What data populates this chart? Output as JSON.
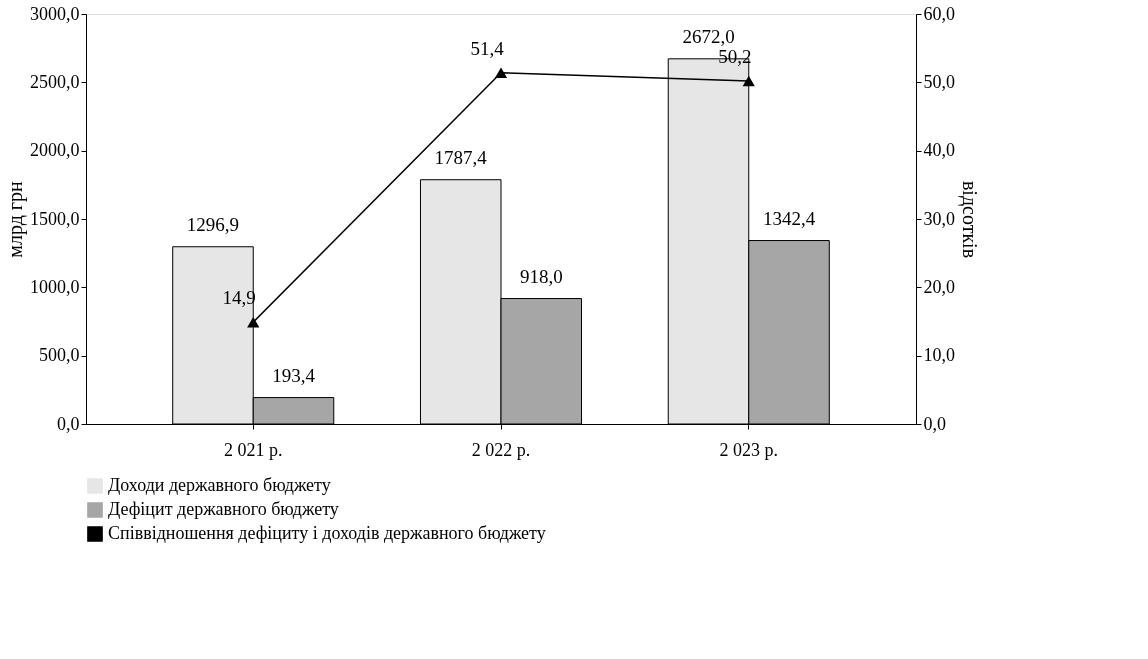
{
  "chart_data": {
    "type": "bar",
    "categories": [
      "2 021 р.",
      "2 022 р.",
      "2 023 р."
    ],
    "ylabel": "млрд грн",
    "y2label": "відсотків",
    "ylim": [
      0,
      3000
    ],
    "yticks": [
      {
        "value": 0,
        "label": "0,0"
      },
      {
        "value": 500,
        "label": "500,0"
      },
      {
        "value": 1000,
        "label": "1000,0"
      },
      {
        "value": 1500,
        "label": "1500,0"
      },
      {
        "value": 2000,
        "label": "2000,0"
      },
      {
        "value": 2500,
        "label": "2500,0"
      },
      {
        "value": 3000,
        "label": "3000,0"
      }
    ],
    "y2lim": [
      0,
      60
    ],
    "y2ticks": [
      {
        "value": 0,
        "label": "0,0"
      },
      {
        "value": 10,
        "label": "10,0"
      },
      {
        "value": 20,
        "label": "20,0"
      },
      {
        "value": 30,
        "label": "30,0"
      },
      {
        "value": 40,
        "label": "40,0"
      },
      {
        "value": 50,
        "label": "50,0"
      },
      {
        "value": 60,
        "label": "60,0"
      }
    ],
    "grid": false,
    "legend": "bottom",
    "series": [
      {
        "name": "Доходи державного бюджету",
        "type": "bar",
        "color": "#e6e6e6",
        "values": [
          1296.9,
          1787.4,
          2672.0
        ],
        "value_labels": [
          "1296,9",
          "1787,4",
          "2672,0"
        ]
      },
      {
        "name": "Дефіцит державного бюджету",
        "type": "bar",
        "color": "#a6a6a6",
        "values": [
          193.4,
          918.0,
          1342.4
        ],
        "value_labels": [
          "193,4",
          "918,0",
          "1342,4"
        ]
      },
      {
        "name": "Співвідношення дефіциту і доходів державного бюджету",
        "type": "line",
        "axis": "y2",
        "color": "#000000",
        "marker": "triangle",
        "line_style": "solid",
        "values": [
          14.9,
          51.4,
          50.2
        ],
        "value_labels": [
          "14,9",
          "51,4",
          "50,2"
        ]
      }
    ]
  }
}
